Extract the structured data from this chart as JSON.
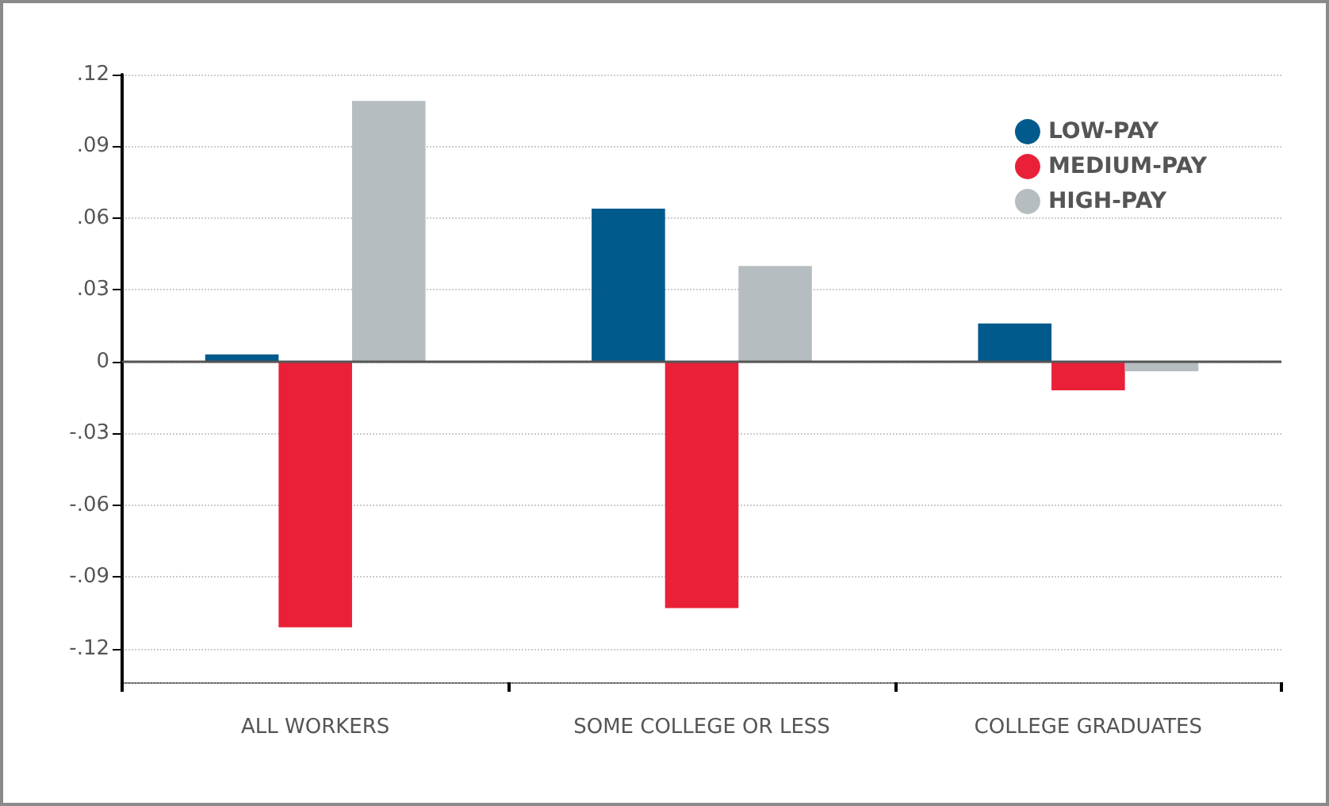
{
  "chart_data": {
    "type": "bar",
    "categories": [
      "ALL WORKERS",
      "SOME COLLEGE OR LESS",
      "COLLEGE GRADUATES"
    ],
    "series": [
      {
        "name": "LOW-PAY",
        "color": "#005a8c",
        "values": [
          0.003,
          0.064,
          0.016
        ]
      },
      {
        "name": "MEDIUM-PAY",
        "color": "#e92038",
        "values": [
          -0.111,
          -0.103,
          -0.012
        ]
      },
      {
        "name": "HIGH-PAY",
        "color": "#b6bdc0",
        "values": [
          0.109,
          0.04,
          -0.004
        ]
      }
    ],
    "ylim": [
      -0.134,
      0.12
    ],
    "yticks": [
      {
        "value": 0.12,
        "label": ".12"
      },
      {
        "value": 0.09,
        "label": ".09"
      },
      {
        "value": 0.06,
        "label": ".06"
      },
      {
        "value": 0.03,
        "label": ".03"
      },
      0,
      {
        "value": -0.03,
        "label": "-.03"
      },
      {
        "value": -0.06,
        "label": "-.06"
      },
      {
        "value": -0.09,
        "label": "-.09"
      },
      {
        "value": -0.12,
        "label": "-.12"
      }
    ],
    "grid": "y",
    "legend": "top right",
    "marker": "circle"
  }
}
